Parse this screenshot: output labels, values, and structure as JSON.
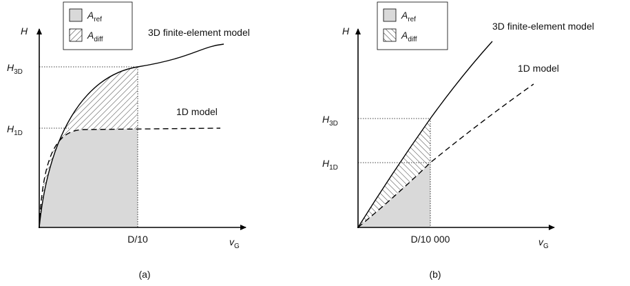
{
  "panels": [
    {
      "y_axis": "H",
      "h3d": {
        "base": "H",
        "sub": "3D"
      },
      "h1d": {
        "base": "H",
        "sub": "1D"
      },
      "x_tick": "D/10",
      "x_axis": {
        "base": "v",
        "sub": "G"
      },
      "caption": "(a)",
      "legend": [
        {
          "base": "A",
          "sub": "ref"
        },
        {
          "base": "A",
          "sub": "diff"
        }
      ],
      "curve_3d": "3D finite-element model",
      "curve_1d": "1D model"
    },
    {
      "y_axis": "H",
      "h3d": {
        "base": "H",
        "sub": "3D"
      },
      "h1d": {
        "base": "H",
        "sub": "1D"
      },
      "x_tick": "D/10 000",
      "x_axis": {
        "base": "v",
        "sub": "G"
      },
      "caption": "(b)",
      "legend": [
        {
          "base": "A",
          "sub": "ref"
        },
        {
          "base": "A",
          "sub": "diff"
        }
      ],
      "curve_3d": "3D finite-element model",
      "curve_1d": "1D model"
    }
  ]
}
